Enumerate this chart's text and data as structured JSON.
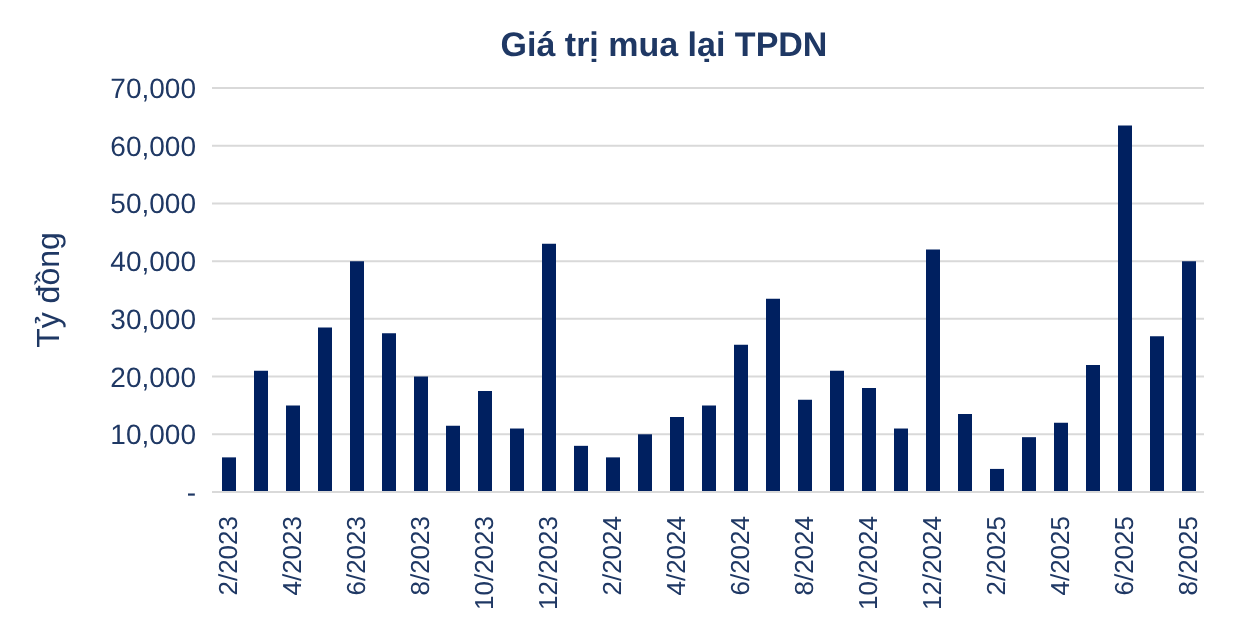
{
  "chart_data": {
    "type": "bar",
    "title": "Giá trị mua lại TPDN",
    "ylabel": "Tỷ đồng",
    "categories": [
      "2/2023",
      null,
      "4/2023",
      null,
      "6/2023",
      null,
      "8/2023",
      null,
      "10/2023",
      null,
      "12/2023",
      null,
      "2/2024",
      null,
      "4/2024",
      null,
      "6/2024",
      null,
      "8/2024",
      null,
      "10/2024",
      null,
      "12/2024",
      null,
      "2/2025",
      null,
      "4/2025",
      null,
      "6/2025",
      null,
      "8/2025"
    ],
    "values": [
      6000,
      21000,
      15000,
      28500,
      40000,
      27500,
      20000,
      11500,
      17500,
      11000,
      43000,
      8000,
      6000,
      10000,
      13000,
      15000,
      25500,
      33500,
      16000,
      21000,
      18000,
      11000,
      42000,
      13500,
      4000,
      9500,
      12000,
      22000,
      63500,
      27000,
      40000
    ],
    "color": "#002060",
    "ylim": [
      0,
      70000
    ],
    "yticks": [
      {
        "value": 0,
        "label": "-"
      },
      {
        "value": 10000,
        "label": "10,000"
      },
      {
        "value": 20000,
        "label": "20,000"
      },
      {
        "value": 30000,
        "label": "30,000"
      },
      {
        "value": 40000,
        "label": "40,000"
      },
      {
        "value": 50000,
        "label": "50,000"
      },
      {
        "value": 60000,
        "label": "60,000"
      },
      {
        "value": 70000,
        "label": "70,000"
      }
    ],
    "grid": "y"
  }
}
